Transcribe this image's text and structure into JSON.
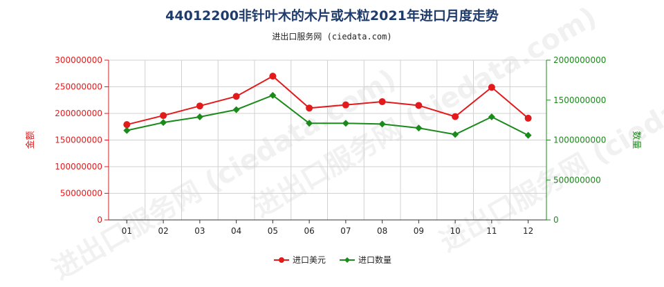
{
  "title": "44012200非针叶木的木片或木粒2021年进口月度走势",
  "subtitle": "进出口服务网 (ciedata.com)",
  "watermark": "进出口服务网 (ciedata.com)",
  "colors": {
    "amount": "#e31a1c",
    "quantity": "#1a8a1a",
    "grid": "#d0d0d0"
  },
  "chart_data": {
    "type": "line",
    "categories": [
      "01",
      "02",
      "03",
      "04",
      "05",
      "06",
      "07",
      "08",
      "09",
      "10",
      "11",
      "12"
    ],
    "y_left": {
      "label": "金额",
      "range": [
        0,
        300000000
      ],
      "ticks": [
        "0",
        "50000000",
        "100000000",
        "150000000",
        "200000000",
        "250000000",
        "300000000"
      ]
    },
    "y_right": {
      "label": "数量",
      "range": [
        0,
        2000000000
      ],
      "ticks": [
        "0",
        "500000000",
        "1000000000",
        "1500000000",
        "2000000000"
      ]
    },
    "series": [
      {
        "name": "进口美元",
        "axis": "left",
        "color": "#e31a1c",
        "values": [
          179000000,
          196000000,
          214000000,
          232000000,
          270000000,
          210000000,
          216000000,
          222000000,
          215000000,
          194000000,
          249000000,
          191000000
        ]
      },
      {
        "name": "进口数量",
        "axis": "right",
        "color": "#1a8a1a",
        "values": [
          1120000000,
          1220000000,
          1290000000,
          1380000000,
          1560000000,
          1210000000,
          1210000000,
          1200000000,
          1150000000,
          1070000000,
          1290000000,
          1060000000
        ]
      }
    ],
    "grid": true,
    "legend": "bottom-center"
  }
}
